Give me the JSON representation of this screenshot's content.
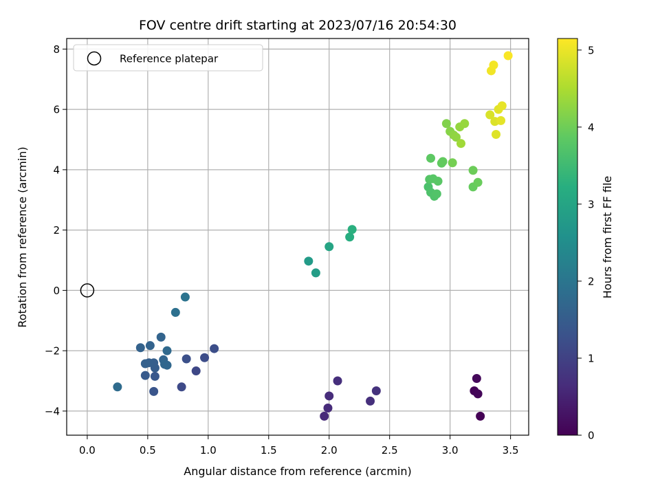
{
  "chart_data": {
    "type": "scatter",
    "title": "FOV centre drift starting at 2023/07/16 20:54:30",
    "xlabel": "Angular distance from reference (arcmin)",
    "ylabel": "Rotation from reference (arcmin)",
    "xlim": [
      -0.17,
      3.65
    ],
    "ylim": [
      -4.8,
      8.35
    ],
    "xticks": [
      "0.0",
      "0.5",
      "1.0",
      "1.5",
      "2.0",
      "2.5",
      "3.0",
      "3.5"
    ],
    "xtick_values": [
      0,
      0.5,
      1.0,
      1.5,
      2.0,
      2.5,
      3.0,
      3.5
    ],
    "yticks": [
      "−4",
      "−2",
      "0",
      "2",
      "4",
      "6",
      "8"
    ],
    "ytick_values": [
      -4,
      -2,
      0,
      2,
      4,
      6,
      8
    ],
    "grid": true,
    "legend": {
      "placement": "top-left",
      "entries": [
        {
          "label": "Reference platepar",
          "marker": "hollow-circle",
          "x": 0,
          "y": 0
        }
      ]
    },
    "colorbar": {
      "label": "Hours from first FF file",
      "range": [
        0,
        5.15
      ],
      "ticks": [
        "0",
        "1",
        "2",
        "3",
        "4",
        "5"
      ],
      "tick_values": [
        0,
        1,
        2,
        3,
        4,
        5
      ],
      "colormap": "viridis"
    },
    "points": [
      {
        "x": 3.25,
        "y": -4.17,
        "hours": 0.02
      },
      {
        "x": 3.2,
        "y": -3.33,
        "hours": 0.05
      },
      {
        "x": 3.23,
        "y": -3.43,
        "hours": 0.08
      },
      {
        "x": 3.22,
        "y": -2.92,
        "hours": 0.12
      },
      {
        "x": 1.96,
        "y": -4.17,
        "hours": 0.6
      },
      {
        "x": 1.99,
        "y": -3.9,
        "hours": 0.62
      },
      {
        "x": 2.0,
        "y": -3.5,
        "hours": 0.65
      },
      {
        "x": 2.07,
        "y": -3.0,
        "hours": 0.68
      },
      {
        "x": 2.34,
        "y": -3.67,
        "hours": 0.7
      },
      {
        "x": 2.39,
        "y": -3.33,
        "hours": 0.73
      },
      {
        "x": 0.9,
        "y": -2.67,
        "hours": 1.1
      },
      {
        "x": 0.78,
        "y": -3.2,
        "hours": 1.15
      },
      {
        "x": 0.97,
        "y": -2.23,
        "hours": 1.2
      },
      {
        "x": 1.05,
        "y": -1.93,
        "hours": 1.22
      },
      {
        "x": 0.82,
        "y": -2.27,
        "hours": 1.25
      },
      {
        "x": 0.55,
        "y": -3.35,
        "hours": 1.35
      },
      {
        "x": 0.56,
        "y": -2.85,
        "hours": 1.4
      },
      {
        "x": 0.48,
        "y": -2.82,
        "hours": 1.45
      },
      {
        "x": 0.56,
        "y": -2.57,
        "hours": 1.5
      },
      {
        "x": 0.55,
        "y": -2.4,
        "hours": 1.52
      },
      {
        "x": 0.51,
        "y": -2.4,
        "hours": 1.55
      },
      {
        "x": 0.48,
        "y": -2.43,
        "hours": 1.57
      },
      {
        "x": 0.44,
        "y": -1.9,
        "hours": 1.6
      },
      {
        "x": 0.52,
        "y": -1.83,
        "hours": 1.62
      },
      {
        "x": 0.61,
        "y": -1.55,
        "hours": 1.65
      },
      {
        "x": 0.63,
        "y": -2.3,
        "hours": 1.67
      },
      {
        "x": 0.64,
        "y": -2.45,
        "hours": 1.7
      },
      {
        "x": 0.66,
        "y": -2.48,
        "hours": 1.72
      },
      {
        "x": 0.66,
        "y": -2.0,
        "hours": 1.75
      },
      {
        "x": 0.25,
        "y": -3.2,
        "hours": 1.8
      },
      {
        "x": 0.73,
        "y": -0.73,
        "hours": 1.9
      },
      {
        "x": 0.81,
        "y": -0.22,
        "hours": 1.95
      },
      {
        "x": 1.83,
        "y": 0.97,
        "hours": 2.8
      },
      {
        "x": 1.89,
        "y": 0.58,
        "hours": 2.85
      },
      {
        "x": 2.0,
        "y": 1.45,
        "hours": 3.0
      },
      {
        "x": 2.17,
        "y": 1.77,
        "hours": 3.2
      },
      {
        "x": 2.19,
        "y": 2.02,
        "hours": 3.25
      },
      {
        "x": 2.82,
        "y": 3.43,
        "hours": 3.65
      },
      {
        "x": 2.84,
        "y": 3.25,
        "hours": 3.68
      },
      {
        "x": 2.87,
        "y": 3.12,
        "hours": 3.7
      },
      {
        "x": 2.89,
        "y": 3.2,
        "hours": 3.72
      },
      {
        "x": 2.83,
        "y": 3.68,
        "hours": 3.75
      },
      {
        "x": 2.86,
        "y": 3.7,
        "hours": 3.78
      },
      {
        "x": 2.9,
        "y": 3.62,
        "hours": 3.8
      },
      {
        "x": 2.84,
        "y": 4.38,
        "hours": 3.85
      },
      {
        "x": 2.93,
        "y": 4.22,
        "hours": 3.88
      },
      {
        "x": 2.94,
        "y": 4.27,
        "hours": 3.9
      },
      {
        "x": 3.19,
        "y": 3.43,
        "hours": 3.92
      },
      {
        "x": 3.23,
        "y": 3.58,
        "hours": 3.95
      },
      {
        "x": 3.19,
        "y": 3.98,
        "hours": 3.98
      },
      {
        "x": 3.02,
        "y": 4.23,
        "hours": 4.05
      },
      {
        "x": 2.97,
        "y": 5.53,
        "hours": 4.15
      },
      {
        "x": 3.0,
        "y": 5.27,
        "hours": 4.2
      },
      {
        "x": 3.03,
        "y": 5.15,
        "hours": 4.25
      },
      {
        "x": 3.05,
        "y": 5.08,
        "hours": 4.28
      },
      {
        "x": 3.08,
        "y": 5.42,
        "hours": 4.3
      },
      {
        "x": 3.12,
        "y": 5.53,
        "hours": 4.33
      },
      {
        "x": 3.09,
        "y": 4.87,
        "hours": 4.4
      },
      {
        "x": 3.33,
        "y": 5.82,
        "hours": 4.85
      },
      {
        "x": 3.37,
        "y": 5.6,
        "hours": 4.88
      },
      {
        "x": 3.38,
        "y": 5.17,
        "hours": 4.9
      },
      {
        "x": 3.4,
        "y": 6.0,
        "hours": 4.93
      },
      {
        "x": 3.42,
        "y": 5.63,
        "hours": 4.95
      },
      {
        "x": 3.43,
        "y": 6.12,
        "hours": 4.97
      },
      {
        "x": 3.34,
        "y": 7.28,
        "hours": 5.05
      },
      {
        "x": 3.36,
        "y": 7.47,
        "hours": 5.08
      },
      {
        "x": 3.48,
        "y": 7.78,
        "hours": 5.12
      }
    ]
  }
}
